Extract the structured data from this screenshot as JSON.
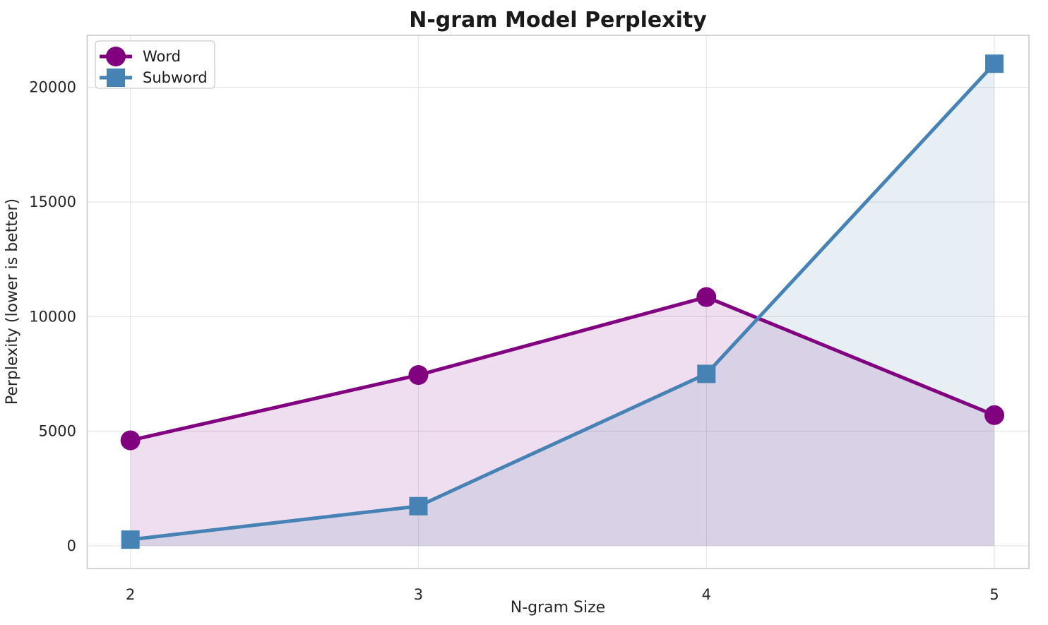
{
  "chart_data": {
    "type": "line",
    "title": "N-gram Model Perplexity",
    "xlabel": "N-gram Size",
    "ylabel": "Perplexity (lower is better)",
    "x": [
      2,
      3,
      4,
      5
    ],
    "series": [
      {
        "name": "Word",
        "color": "#800080",
        "marker": "circle",
        "values": [
          4600,
          7450,
          10850,
          5700
        ]
      },
      {
        "name": "Subword",
        "color": "#4682B4",
        "marker": "square",
        "values": [
          270,
          1730,
          7500,
          21030
        ]
      }
    ],
    "fill_to_zero": true,
    "fill_opacity": 0.13,
    "xticks": [
      2,
      3,
      4,
      5
    ],
    "yticks": [
      0,
      5000,
      10000,
      15000,
      20000
    ],
    "xlim": [
      1.85,
      5.12
    ],
    "ylim": [
      -990,
      22270
    ],
    "grid": true,
    "legend": {
      "position": "upper-left",
      "entries": [
        "Word",
        "Subword"
      ]
    }
  },
  "colors": {
    "background": "#ffffff",
    "grid": "#e7e7e7",
    "spine": "#c9c9c9",
    "legend_border": "#cccccc",
    "legend_background": "#ffffff",
    "text": "#262626",
    "title_text": "#1a1a1a"
  }
}
